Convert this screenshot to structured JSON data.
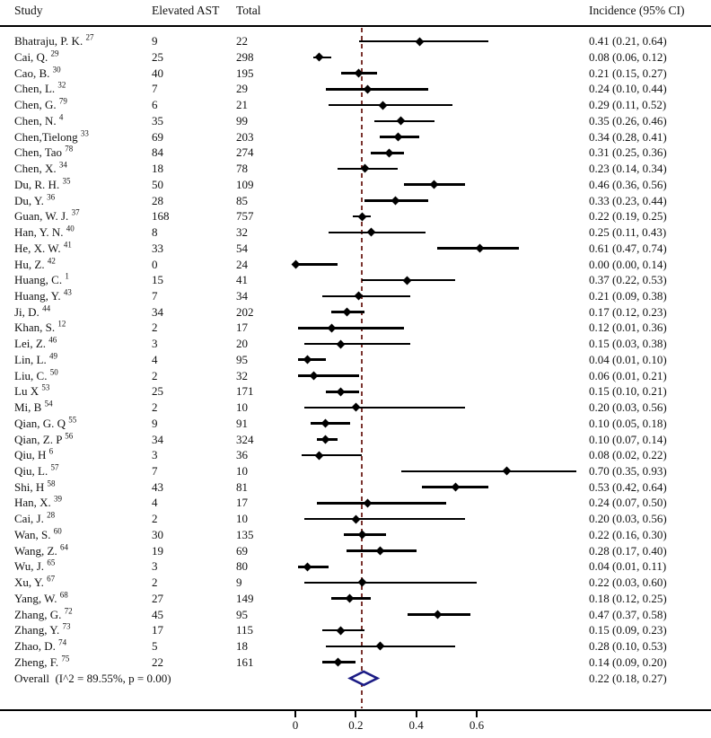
{
  "header": {
    "study": "Study",
    "events": "Elevated AST",
    "total": "Total",
    "ci": "Incidence (95% CI)"
  },
  "colors": {
    "text": "#111111",
    "marker": "#000000",
    "reference_line": "#7a332e",
    "overall_diamond": "#1c1c85",
    "rule": "#000000"
  },
  "chart_data": {
    "type": "forest",
    "title": "",
    "columns": [
      "Study",
      "Elevated AST",
      "Total",
      "Incidence (95% CI)"
    ],
    "xlabel": "",
    "axis": {
      "ticks": [
        0,
        0.2,
        0.4,
        0.6
      ],
      "tick_labels": [
        "0",
        "0.2",
        "0.4",
        "0.6"
      ],
      "xlim": [
        -0.98,
        1.37
      ],
      "reference_line": 0.22,
      "grid": false
    },
    "studies": [
      {
        "name": "Bhatraju, P. K.",
        "ref": "27",
        "events": 9,
        "total": 22,
        "est": 0.41,
        "lo": 0.21,
        "hi": 0.64,
        "ci_text": "0.41 (0.21, 0.64)"
      },
      {
        "name": "Cai, Q.",
        "ref": "29",
        "events": 25,
        "total": 298,
        "est": 0.08,
        "lo": 0.06,
        "hi": 0.12,
        "ci_text": "0.08 (0.06, 0.12)"
      },
      {
        "name": "Cao, B.",
        "ref": "30",
        "events": 40,
        "total": 195,
        "est": 0.21,
        "lo": 0.15,
        "hi": 0.27,
        "ci_text": "0.21 (0.15, 0.27)"
      },
      {
        "name": "Chen, L.",
        "ref": "32",
        "events": 7,
        "total": 29,
        "est": 0.24,
        "lo": 0.1,
        "hi": 0.44,
        "ci_text": "0.24 (0.10, 0.44)"
      },
      {
        "name": "Chen, G.",
        "ref": "79",
        "events": 6,
        "total": 21,
        "est": 0.29,
        "lo": 0.11,
        "hi": 0.52,
        "ci_text": "0.29 (0.11, 0.52)"
      },
      {
        "name": "Chen, N.",
        "ref": "4",
        "events": 35,
        "total": 99,
        "est": 0.35,
        "lo": 0.26,
        "hi": 0.46,
        "ci_text": "0.35 (0.26, 0.46)"
      },
      {
        "name": "Chen,Tielong",
        "ref": "33",
        "events": 69,
        "total": 203,
        "est": 0.34,
        "lo": 0.28,
        "hi": 0.41,
        "ci_text": "0.34 (0.28, 0.41)"
      },
      {
        "name": "Chen, Tao",
        "ref": "78",
        "events": 84,
        "total": 274,
        "est": 0.31,
        "lo": 0.25,
        "hi": 0.36,
        "ci_text": "0.31 (0.25, 0.36)"
      },
      {
        "name": "Chen, X.",
        "ref": "34",
        "events": 18,
        "total": 78,
        "est": 0.23,
        "lo": 0.14,
        "hi": 0.34,
        "ci_text": "0.23 (0.14, 0.34)"
      },
      {
        "name": "Du, R. H.",
        "ref": "35",
        "events": 50,
        "total": 109,
        "est": 0.46,
        "lo": 0.36,
        "hi": 0.56,
        "ci_text": "0.46 (0.36, 0.56)"
      },
      {
        "name": "Du, Y.",
        "ref": "36",
        "events": 28,
        "total": 85,
        "est": 0.33,
        "lo": 0.23,
        "hi": 0.44,
        "ci_text": "0.33 (0.23, 0.44)"
      },
      {
        "name": "Guan, W. J.",
        "ref": "37",
        "events": 168,
        "total": 757,
        "est": 0.22,
        "lo": 0.19,
        "hi": 0.25,
        "ci_text": "0.22 (0.19, 0.25)"
      },
      {
        "name": "Han, Y. N.",
        "ref": "40",
        "events": 8,
        "total": 32,
        "est": 0.25,
        "lo": 0.11,
        "hi": 0.43,
        "ci_text": "0.25 (0.11, 0.43)"
      },
      {
        "name": "He, X. W.",
        "ref": "41",
        "events": 33,
        "total": 54,
        "est": 0.61,
        "lo": 0.47,
        "hi": 0.74,
        "ci_text": "0.61 (0.47, 0.74)"
      },
      {
        "name": "Hu, Z.",
        "ref": "42",
        "events": 0,
        "total": 24,
        "est": 0.0,
        "lo": 0.0,
        "hi": 0.14,
        "ci_text": "0.00 (0.00, 0.14)"
      },
      {
        "name": "Huang, C.",
        "ref": "1",
        "events": 15,
        "total": 41,
        "est": 0.37,
        "lo": 0.22,
        "hi": 0.53,
        "ci_text": "0.37 (0.22, 0.53)"
      },
      {
        "name": "Huang, Y.",
        "ref": "43",
        "events": 7,
        "total": 34,
        "est": 0.21,
        "lo": 0.09,
        "hi": 0.38,
        "ci_text": "0.21 (0.09, 0.38)"
      },
      {
        "name": "Ji, D.",
        "ref": "44",
        "events": 34,
        "total": 202,
        "est": 0.17,
        "lo": 0.12,
        "hi": 0.23,
        "ci_text": "0.17 (0.12, 0.23)"
      },
      {
        "name": "Khan, S.",
        "ref": "12",
        "events": 2,
        "total": 17,
        "est": 0.12,
        "lo": 0.01,
        "hi": 0.36,
        "ci_text": "0.12 (0.01, 0.36)"
      },
      {
        "name": "Lei, Z.",
        "ref": "46",
        "events": 3,
        "total": 20,
        "est": 0.15,
        "lo": 0.03,
        "hi": 0.38,
        "ci_text": "0.15 (0.03, 0.38)"
      },
      {
        "name": "Lin, L.",
        "ref": "49",
        "events": 4,
        "total": 95,
        "est": 0.04,
        "lo": 0.01,
        "hi": 0.1,
        "ci_text": "0.04 (0.01, 0.10)"
      },
      {
        "name": "Liu, C.",
        "ref": "50",
        "events": 2,
        "total": 32,
        "est": 0.06,
        "lo": 0.01,
        "hi": 0.21,
        "ci_text": "0.06 (0.01, 0.21)"
      },
      {
        "name": "Lu X",
        "ref": "53",
        "events": 25,
        "total": 171,
        "est": 0.15,
        "lo": 0.1,
        "hi": 0.21,
        "ci_text": "0.15 (0.10, 0.21)"
      },
      {
        "name": "Mi, B",
        "ref": "54",
        "events": 2,
        "total": 10,
        "est": 0.2,
        "lo": 0.03,
        "hi": 0.56,
        "ci_text": "0.20 (0.03, 0.56)"
      },
      {
        "name": "Qian, G. Q",
        "ref": "55",
        "events": 9,
        "total": 91,
        "est": 0.1,
        "lo": 0.05,
        "hi": 0.18,
        "ci_text": "0.10 (0.05, 0.18)"
      },
      {
        "name": "Qian, Z. P",
        "ref": "56",
        "events": 34,
        "total": 324,
        "est": 0.1,
        "lo": 0.07,
        "hi": 0.14,
        "ci_text": "0.10 (0.07, 0.14)"
      },
      {
        "name": "Qiu, H",
        "ref": "6",
        "events": 3,
        "total": 36,
        "est": 0.08,
        "lo": 0.02,
        "hi": 0.22,
        "ci_text": "0.08 (0.02, 0.22)"
      },
      {
        "name": "Qiu, L.",
        "ref": "57",
        "events": 7,
        "total": 10,
        "est": 0.7,
        "lo": 0.35,
        "hi": 0.93,
        "ci_text": "0.70 (0.35, 0.93)"
      },
      {
        "name": "Shi, H",
        "ref": "58",
        "events": 43,
        "total": 81,
        "est": 0.53,
        "lo": 0.42,
        "hi": 0.64,
        "ci_text": "0.53 (0.42, 0.64)"
      },
      {
        "name": "Han, X.",
        "ref": "39",
        "events": 4,
        "total": 17,
        "est": 0.24,
        "lo": 0.07,
        "hi": 0.5,
        "ci_text": "0.24 (0.07, 0.50)"
      },
      {
        "name": "Cai, J.",
        "ref": "28",
        "events": 2,
        "total": 10,
        "est": 0.2,
        "lo": 0.03,
        "hi": 0.56,
        "ci_text": "0.20 (0.03, 0.56)"
      },
      {
        "name": "Wan, S.",
        "ref": "60",
        "events": 30,
        "total": 135,
        "est": 0.22,
        "lo": 0.16,
        "hi": 0.3,
        "ci_text": "0.22 (0.16, 0.30)"
      },
      {
        "name": "Wang, Z.",
        "ref": "64",
        "events": 19,
        "total": 69,
        "est": 0.28,
        "lo": 0.17,
        "hi": 0.4,
        "ci_text": "0.28 (0.17, 0.40)"
      },
      {
        "name": "Wu, J.",
        "ref": "65",
        "events": 3,
        "total": 80,
        "est": 0.04,
        "lo": 0.01,
        "hi": 0.11,
        "ci_text": "0.04 (0.01, 0.11)"
      },
      {
        "name": "Xu, Y.",
        "ref": "67",
        "events": 2,
        "total": 9,
        "est": 0.22,
        "lo": 0.03,
        "hi": 0.6,
        "ci_text": "0.22 (0.03, 0.60)"
      },
      {
        "name": "Yang, W.",
        "ref": "68",
        "events": 27,
        "total": 149,
        "est": 0.18,
        "lo": 0.12,
        "hi": 0.25,
        "ci_text": "0.18 (0.12, 0.25)"
      },
      {
        "name": "Zhang, G.",
        "ref": "72",
        "events": 45,
        "total": 95,
        "est": 0.47,
        "lo": 0.37,
        "hi": 0.58,
        "ci_text": "0.47 (0.37, 0.58)"
      },
      {
        "name": "Zhang, Y.",
        "ref": "73",
        "events": 17,
        "total": 115,
        "est": 0.15,
        "lo": 0.09,
        "hi": 0.23,
        "ci_text": "0.15 (0.09, 0.23)"
      },
      {
        "name": "Zhao, D.",
        "ref": "74",
        "events": 5,
        "total": 18,
        "est": 0.28,
        "lo": 0.1,
        "hi": 0.53,
        "ci_text": "0.28 (0.10, 0.53)"
      },
      {
        "name": "Zheng, F.",
        "ref": "75",
        "events": 22,
        "total": 161,
        "est": 0.14,
        "lo": 0.09,
        "hi": 0.2,
        "ci_text": "0.14 (0.09, 0.20)"
      }
    ],
    "overall": {
      "label": "Overall  (I^2 = 89.55%, p = 0.00)",
      "est": 0.22,
      "lo": 0.18,
      "hi": 0.27,
      "ci_text": "0.22 (0.18, 0.27)"
    }
  }
}
